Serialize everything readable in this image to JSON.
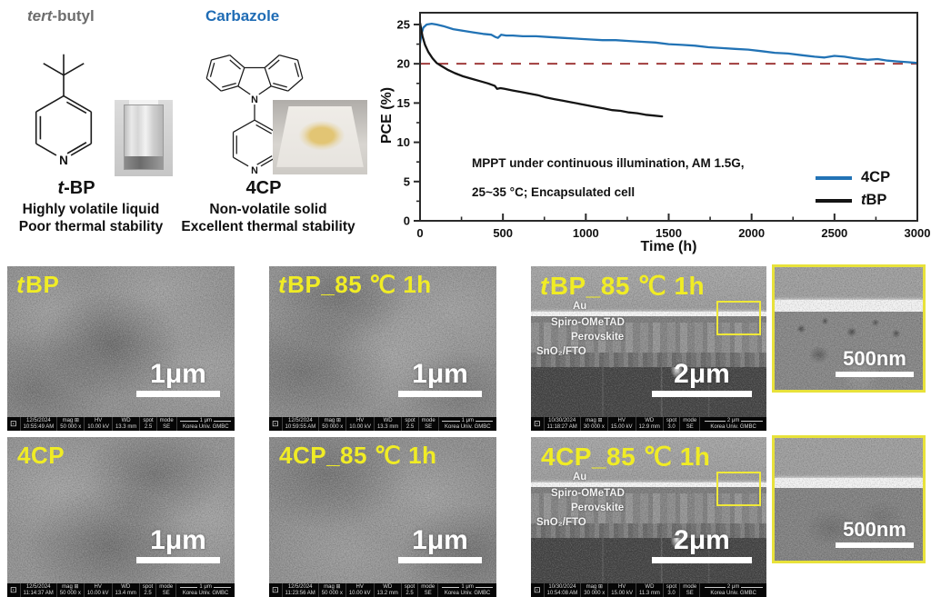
{
  "chem": {
    "tbp": {
      "group_italic": "tert",
      "group_rest": "-butyl",
      "name_italic": "t",
      "name_rest": "-BP",
      "desc1": "Highly volatile liquid",
      "desc2": "Poor thermal stability",
      "atom": "N"
    },
    "cp": {
      "group": "Carbazole",
      "name": "4CP",
      "desc1": "Non-volatile solid",
      "desc2": "Excellent thermal stability",
      "atom": "N"
    },
    "colors": {
      "carbazole_blue": "#1f6cb5",
      "tert_gray": "#6d6d6d"
    }
  },
  "chart_data": {
    "type": "line",
    "xlabel": "Time (h)",
    "ylabel": "PCE (%)",
    "xlim": [
      0,
      3000
    ],
    "ylim": [
      0,
      26.5
    ],
    "xticks": [
      0,
      500,
      1000,
      1500,
      2000,
      2500,
      3000
    ],
    "xminor": [
      250,
      750,
      1250,
      1750,
      2250,
      2750
    ],
    "yticks": [
      0,
      5,
      10,
      15,
      20,
      25
    ],
    "yminor": [
      2.5,
      7.5,
      12.5,
      17.5,
      22.5
    ],
    "grid": false,
    "legend_position": "inside-right",
    "reference_line": {
      "y": 20,
      "style": "dashed",
      "color": "#a03c3c"
    },
    "annotation_line1": "MPPT under continuous illumination, AM 1.5G,",
    "annotation_line2": "25~35 °C; Encapsulated cell",
    "legend": [
      {
        "prefix": "",
        "label": "4CP",
        "color": "#2273b5"
      },
      {
        "prefix": "t",
        "label": "BP",
        "color": "#141414"
      }
    ],
    "series": [
      {
        "name": "4CP",
        "color": "#2273b5",
        "points": [
          [
            0,
            22.6
          ],
          [
            8,
            23.8
          ],
          [
            20,
            24.6
          ],
          [
            40,
            25.0
          ],
          [
            70,
            25.1
          ],
          [
            100,
            25.0
          ],
          [
            140,
            24.8
          ],
          [
            200,
            24.4
          ],
          [
            260,
            24.2
          ],
          [
            320,
            24.0
          ],
          [
            380,
            23.8
          ],
          [
            430,
            23.7
          ],
          [
            455,
            23.4
          ],
          [
            470,
            23.3
          ],
          [
            490,
            23.7
          ],
          [
            520,
            23.6
          ],
          [
            560,
            23.6
          ],
          [
            620,
            23.5
          ],
          [
            700,
            23.5
          ],
          [
            780,
            23.4
          ],
          [
            860,
            23.3
          ],
          [
            940,
            23.2
          ],
          [
            1020,
            23.1
          ],
          [
            1100,
            23.0
          ],
          [
            1180,
            23.0
          ],
          [
            1260,
            22.9
          ],
          [
            1340,
            22.8
          ],
          [
            1420,
            22.7
          ],
          [
            1500,
            22.5
          ],
          [
            1580,
            22.4
          ],
          [
            1660,
            22.3
          ],
          [
            1740,
            22.1
          ],
          [
            1820,
            22.0
          ],
          [
            1900,
            21.9
          ],
          [
            1980,
            21.8
          ],
          [
            2060,
            21.6
          ],
          [
            2140,
            21.4
          ],
          [
            2220,
            21.3
          ],
          [
            2300,
            21.1
          ],
          [
            2380,
            20.9
          ],
          [
            2440,
            20.8
          ],
          [
            2500,
            21.0
          ],
          [
            2560,
            20.9
          ],
          [
            2620,
            20.7
          ],
          [
            2700,
            20.5
          ],
          [
            2760,
            20.6
          ],
          [
            2820,
            20.4
          ],
          [
            2880,
            20.3
          ],
          [
            2940,
            20.2
          ],
          [
            3000,
            20.1
          ]
        ]
      },
      {
        "name": "tBP",
        "color": "#141414",
        "points": [
          [
            0,
            25.2
          ],
          [
            15,
            23.5
          ],
          [
            30,
            22.4
          ],
          [
            50,
            21.5
          ],
          [
            75,
            20.7
          ],
          [
            100,
            20.1
          ],
          [
            130,
            19.7
          ],
          [
            170,
            19.2
          ],
          [
            210,
            18.8
          ],
          [
            260,
            18.4
          ],
          [
            310,
            18.1
          ],
          [
            360,
            17.8
          ],
          [
            410,
            17.5
          ],
          [
            450,
            17.2
          ],
          [
            465,
            16.8
          ],
          [
            485,
            16.9
          ],
          [
            510,
            16.8
          ],
          [
            560,
            16.6
          ],
          [
            610,
            16.4
          ],
          [
            660,
            16.2
          ],
          [
            710,
            16.0
          ],
          [
            760,
            15.7
          ],
          [
            810,
            15.5
          ],
          [
            860,
            15.3
          ],
          [
            910,
            15.1
          ],
          [
            960,
            14.9
          ],
          [
            1010,
            14.7
          ],
          [
            1060,
            14.5
          ],
          [
            1110,
            14.3
          ],
          [
            1160,
            14.1
          ],
          [
            1210,
            14.0
          ],
          [
            1260,
            13.8
          ],
          [
            1310,
            13.7
          ],
          [
            1360,
            13.5
          ],
          [
            1410,
            13.4
          ],
          [
            1460,
            13.3
          ]
        ]
      }
    ]
  },
  "sem": {
    "logo_glyph": "⊡",
    "lab": "Korea Univ. GMBC",
    "label_color": "#f0ec25",
    "meta_headers": {
      "mag": "mag ⊞",
      "hv": "HV",
      "wd": "WD",
      "spot": "spot",
      "mode": "mode"
    },
    "cards": [
      {
        "label_prefix": "t",
        "label_rest": "BP",
        "scale": "1μm",
        "meta": {
          "date": "12/5/2024",
          "time": "10:55:49 AM",
          "mag": "50 000 x",
          "hv": "10.00 kV",
          "wd": "13.3 mm",
          "spot": "2.5",
          "mode": "SE",
          "ruler": "1 μm"
        }
      },
      {
        "label_prefix": "t",
        "label_rest": "BP_85 ℃ 1h",
        "scale": "1μm",
        "meta": {
          "date": "12/5/2024",
          "time": "10:59:55 AM",
          "mag": "50 000 x",
          "hv": "10.00 kV",
          "wd": "13.3 mm",
          "spot": "2.5",
          "mode": "SE",
          "ruler": "1 μm"
        }
      },
      {
        "label_prefix": "t",
        "label_rest": "BP_85 ℃ 1h",
        "scale": "2μm",
        "layers": {
          "l1": "Au",
          "l2": "Spiro-OMeTAD",
          "l3": "Perovskite",
          "l4": "SnO₂/FTO"
        },
        "meta": {
          "date": "10/30/2024",
          "time": "11:18:27 AM",
          "mag": "30 000 x",
          "hv": "15.00 kV",
          "wd": "12.9 mm",
          "spot": "3.0",
          "mode": "SE",
          "ruler": "2 μm"
        }
      },
      {
        "label_prefix": "",
        "label_rest": "4CP",
        "scale": "1μm",
        "meta": {
          "date": "12/5/2024",
          "time": "11:14:37 AM",
          "mag": "50 000 x",
          "hv": "10.00 kV",
          "wd": "13.4 mm",
          "spot": "2.5",
          "mode": "SE",
          "ruler": "1 μm"
        }
      },
      {
        "label_prefix": "",
        "label_rest": "4CP_85 ℃ 1h",
        "scale": "1μm",
        "meta": {
          "date": "12/5/2024",
          "time": "11:23:56 AM",
          "mag": "50 000 x",
          "hv": "10.00 kV",
          "wd": "13.2 mm",
          "spot": "2.5",
          "mode": "SE",
          "ruler": "1 μm"
        }
      },
      {
        "label_prefix": "",
        "label_rest": "4CP_85 ℃ 1h",
        "scale": "2μm",
        "layers": {
          "l1": "Au",
          "l2": "Spiro-OMeTAD",
          "l3": "Perovskite",
          "l4": "SnO₂/FTO"
        },
        "meta": {
          "date": "10/30/2024",
          "time": "10:54:08 AM",
          "mag": "30 000 x",
          "hv": "15.00 kV",
          "wd": "11.3 mm",
          "spot": "3.0",
          "mode": "SE",
          "ruler": "2 μm"
        }
      }
    ],
    "insets": [
      {
        "scale": "500nm"
      },
      {
        "scale": "500nm"
      }
    ]
  }
}
